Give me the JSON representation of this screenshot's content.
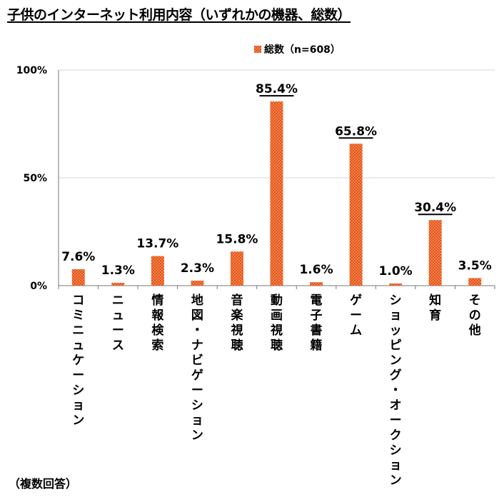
{
  "title": "子供のインターネット利用内容（いずれかの機器、総数）",
  "note": "（複数回答）",
  "colors": {
    "bar": "#f08a3c",
    "bar_dot": "#e0201c",
    "axis": "#777777",
    "grid": "#d4d4d4"
  },
  "chart_data": {
    "type": "bar",
    "categories": [
      "コミニュケーション",
      "ニュース",
      "情報検索",
      "地図・ナビゲーション",
      "音楽視聴",
      "動画視聴",
      "電子書籍",
      "ゲーム",
      "ショッピング・オークション",
      "知育",
      "その他"
    ],
    "series": [
      {
        "name": "総数（n=608）",
        "values": [
          7.6,
          1.3,
          13.7,
          2.3,
          15.8,
          85.4,
          1.6,
          65.8,
          1.0,
          30.4,
          3.5
        ]
      }
    ],
    "data_labels": [
      "7.6%",
      "1.3%",
      "13.7%",
      "2.3%",
      "15.8%",
      "85.4%",
      "1.6%",
      "65.8%",
      "1.0%",
      "30.4%",
      "3.5%"
    ],
    "underlined_labels": [
      5,
      7,
      9
    ],
    "y_ticks": [
      "0%",
      "50%",
      "100%"
    ],
    "y_tick_values": [
      0,
      50,
      100
    ],
    "ylim": [
      0,
      100
    ],
    "grid": true,
    "legend": "top"
  }
}
